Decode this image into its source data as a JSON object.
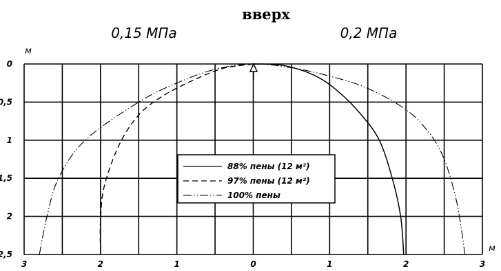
{
  "chart_data": {
    "type": "line",
    "title": "вверх",
    "left_label": "0,15 МПа",
    "right_label": "0,2 МПа",
    "ylabel": "м",
    "xlabel": "м",
    "xlim": [
      -3,
      3
    ],
    "ylim": [
      0,
      2.5
    ],
    "y_inverted": true,
    "grid": true,
    "x_tick_labels": [
      "3",
      "2",
      "1",
      "0",
      "1",
      "2",
      "3"
    ],
    "y_tick_labels": [
      "0",
      "0,5",
      "1",
      "1,5",
      "2",
      "2,5"
    ],
    "legend_position": "center",
    "marker": {
      "x": 0,
      "y": 0,
      "shape": "triangle"
    },
    "series": [
      {
        "name": "88% пены (12 м²)",
        "style": "solid",
        "points": [
          [
            0,
            0
          ],
          [
            0.4,
            0.02
          ],
          [
            0.8,
            0.15
          ],
          [
            1.1,
            0.35
          ],
          [
            1.4,
            0.65
          ],
          [
            1.65,
            1.0
          ],
          [
            1.82,
            1.5
          ],
          [
            1.93,
            2.0
          ],
          [
            1.97,
            2.5
          ]
        ]
      },
      {
        "name": "97% пены (12 м²)",
        "style": "dashed",
        "points": [
          [
            0,
            0
          ],
          [
            -0.4,
            0.06
          ],
          [
            -0.8,
            0.22
          ],
          [
            -1.2,
            0.43
          ],
          [
            -1.5,
            0.67
          ],
          [
            -1.75,
            1.05
          ],
          [
            -1.95,
            1.6
          ],
          [
            -2.0,
            2.05
          ],
          [
            -2.0,
            2.5
          ]
        ]
      },
      {
        "name": "100% пены",
        "style": "dashdotdot",
        "points": [
          [
            -2.8,
            2.5
          ],
          [
            -2.7,
            2.0
          ],
          [
            -2.55,
            1.5
          ],
          [
            -2.2,
            1.0
          ],
          [
            -1.5,
            0.5
          ],
          [
            -1.0,
            0.25
          ],
          [
            -0.5,
            0.07
          ],
          [
            0,
            0
          ],
          [
            0.5,
            0.05
          ],
          [
            1.0,
            0.16
          ],
          [
            1.5,
            0.32
          ],
          [
            2.0,
            0.6
          ],
          [
            2.3,
            0.9
          ],
          [
            2.5,
            1.25
          ],
          [
            2.65,
            1.75
          ],
          [
            2.73,
            2.2
          ],
          [
            2.77,
            2.5
          ]
        ]
      }
    ]
  }
}
